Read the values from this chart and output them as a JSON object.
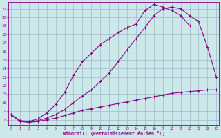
{
  "xlabel": "Windchill (Refroidissement éolien,°C)",
  "bg_color": "#cce8e8",
  "line_color": "#880088",
  "grid_color": "#99aacc",
  "x_ticks": [
    0,
    1,
    2,
    3,
    4,
    5,
    6,
    7,
    8,
    9,
    10,
    11,
    12,
    13,
    14,
    15,
    16,
    17,
    18,
    19,
    20,
    21,
    22,
    23
  ],
  "y_ticks": [
    8,
    9,
    10,
    11,
    12,
    13,
    14,
    15,
    16,
    17,
    18,
    19,
    20,
    21
  ],
  "ylim": [
    7.4,
    21.8
  ],
  "xlim": [
    -0.3,
    23.3
  ],
  "curve1_x": [
    0,
    1,
    2,
    3,
    4,
    5,
    6,
    7,
    8,
    9,
    10,
    11,
    12,
    13,
    14,
    15,
    16,
    17,
    18,
    19,
    20,
    21,
    22,
    23
  ],
  "curve1_y": [
    8.6,
    7.8,
    7.7,
    7.8,
    8.0,
    8.2,
    8.5,
    8.8,
    9.1,
    9.3,
    9.5,
    9.7,
    9.9,
    10.1,
    10.3,
    10.5,
    10.7,
    10.9,
    11.1,
    11.2,
    11.3,
    11.4,
    11.5,
    11.5
  ],
  "curve2_x": [
    0,
    1,
    2,
    3,
    4,
    5,
    6,
    7,
    8,
    9,
    10,
    11,
    12,
    13,
    14,
    15,
    16,
    17,
    18,
    19,
    20,
    21,
    22,
    23
  ],
  "curve2_y": [
    8.6,
    7.9,
    7.7,
    7.9,
    8.2,
    8.6,
    9.2,
    10.0,
    10.8,
    11.5,
    12.5,
    13.5,
    14.8,
    16.2,
    17.5,
    18.8,
    20.2,
    21.0,
    21.2,
    21.0,
    20.2,
    19.5,
    16.5,
    13.0
  ],
  "curve3_x": [
    0,
    1,
    2,
    3,
    4,
    5,
    6,
    7,
    8,
    9,
    10,
    11,
    12,
    13,
    14,
    15,
    16,
    17,
    18,
    19,
    20,
    21,
    22
  ],
  "curve3_y": [
    8.6,
    7.9,
    7.8,
    8.1,
    8.8,
    9.8,
    11.2,
    13.2,
    14.8,
    15.8,
    16.8,
    17.5,
    18.2,
    18.8,
    19.2,
    20.8,
    21.5,
    21.2,
    20.8,
    20.2,
    19.0,
    null,
    null
  ],
  "linewidth": 0.8,
  "markersize": 3.0
}
